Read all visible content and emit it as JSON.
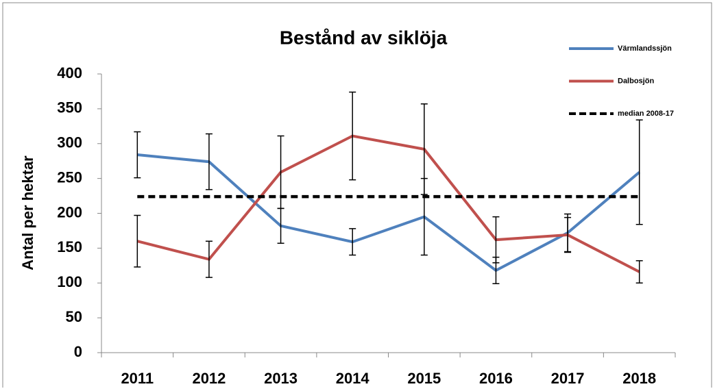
{
  "chart_data": {
    "type": "line",
    "title": "Bestånd av siklöja",
    "y_label": "Antal per hektar",
    "categories": [
      "2011",
      "2012",
      "2013",
      "2014",
      "2015",
      "2016",
      "2017",
      "2018"
    ],
    "ylim": [
      0,
      400
    ],
    "yticks": [
      0,
      50,
      100,
      150,
      200,
      250,
      300,
      350,
      400
    ],
    "grid": false,
    "legend": "top-right",
    "series": [
      {
        "name": "Värmlandssjön",
        "color": "#4f81bd",
        "values": [
          284,
          274,
          182,
          159,
          195,
          118,
          172,
          259
        ],
        "errors": [
          33,
          40,
          25,
          19,
          55,
          19,
          27,
          75
        ]
      },
      {
        "name": "Dalbosjön",
        "color": "#c0504d",
        "values": [
          160,
          134,
          259,
          311,
          292,
          162,
          169,
          116
        ],
        "errors": [
          37,
          26,
          52,
          63,
          65,
          33,
          25,
          16
        ]
      },
      {
        "name": "median 2008-17",
        "color": "#000000",
        "dashed": true,
        "values": [
          224,
          224,
          224,
          224,
          224,
          224,
          224,
          224
        ]
      }
    ]
  }
}
